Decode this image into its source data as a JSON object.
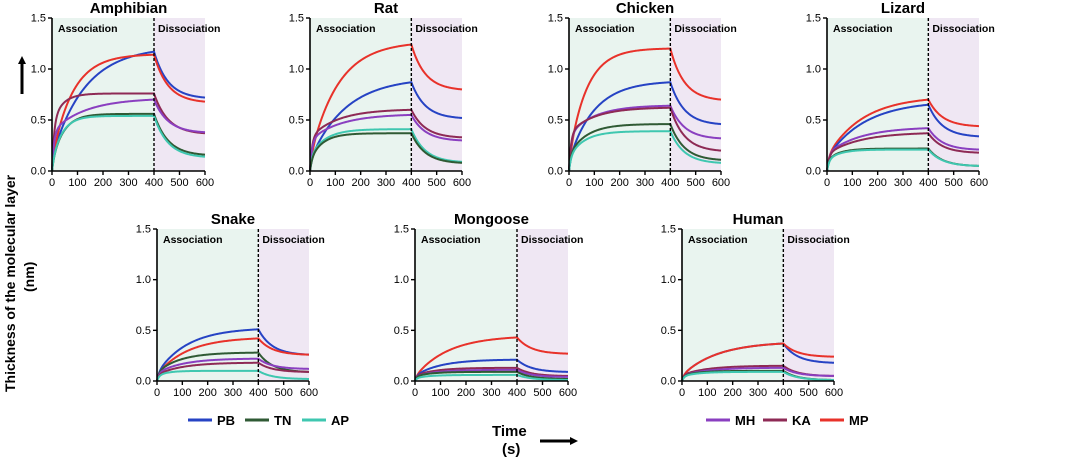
{
  "figure": {
    "y_axis_label": "Thickness of the molecular layer",
    "y_axis_unit": "(nm)",
    "x_axis_label": "Time",
    "x_axis_unit": "(s)"
  },
  "legend": {
    "left": [
      {
        "key": "PB",
        "label": "PB",
        "color": "#2643c4"
      },
      {
        "key": "TN",
        "label": "TN",
        "color": "#2f5a34"
      },
      {
        "key": "AP",
        "label": "AP",
        "color": "#3fc7b0"
      }
    ],
    "right": [
      {
        "key": "MH",
        "label": "MH",
        "color": "#8a3fc0"
      },
      {
        "key": "KA",
        "label": "KA",
        "color": "#8e2a55"
      },
      {
        "key": "MP",
        "label": "MP",
        "color": "#e8322a"
      }
    ]
  },
  "chart_data": [
    {
      "type": "line",
      "title": "Amphibian",
      "phase_labels": [
        "Association",
        "Dissociation"
      ],
      "phase_boundary": 400,
      "xlim": [
        0,
        600
      ],
      "ylim": [
        0,
        1.5
      ],
      "xticks": [
        0,
        100,
        200,
        300,
        400,
        500,
        600
      ],
      "yticks": [
        0.0,
        0.5,
        1.0,
        1.5
      ],
      "series": [
        {
          "name": "PB",
          "peak": 1.17,
          "end": 0.72,
          "tau": 130,
          "fast": 0.12
        },
        {
          "name": "MP",
          "peak": 1.14,
          "end": 0.68,
          "tau": 80,
          "fast": 0.1
        },
        {
          "name": "KA",
          "peak": 0.76,
          "end": 0.37,
          "tau": 40,
          "fast": 0.62
        },
        {
          "name": "MH",
          "peak": 0.7,
          "end": 0.38,
          "tau": 130,
          "fast": 0.55
        },
        {
          "name": "TN",
          "peak": 0.56,
          "end": 0.16,
          "tau": 45,
          "fast": 0.15
        },
        {
          "name": "AP",
          "peak": 0.54,
          "end": 0.14,
          "tau": 40,
          "fast": 0.15
        }
      ]
    },
    {
      "type": "line",
      "title": "Rat",
      "phase_labels": [
        "Association",
        "Dissociation"
      ],
      "phase_boundary": 400,
      "xlim": [
        0,
        600
      ],
      "ylim": [
        0,
        1.5
      ],
      "xticks": [
        0,
        100,
        200,
        300,
        400,
        500,
        600
      ],
      "yticks": [
        0.0,
        0.5,
        1.0,
        1.5
      ],
      "series": [
        {
          "name": "MP",
          "peak": 1.24,
          "end": 0.8,
          "tau": 110,
          "fast": 0.1
        },
        {
          "name": "PB",
          "peak": 0.87,
          "end": 0.52,
          "tau": 140,
          "fast": 0.12
        },
        {
          "name": "KA",
          "peak": 0.6,
          "end": 0.33,
          "tau": 110,
          "fast": 0.55
        },
        {
          "name": "MH",
          "peak": 0.55,
          "end": 0.3,
          "tau": 120,
          "fast": 0.55
        },
        {
          "name": "AP",
          "peak": 0.41,
          "end": 0.09,
          "tau": 60,
          "fast": 0.35
        },
        {
          "name": "TN",
          "peak": 0.37,
          "end": 0.08,
          "tau": 50,
          "fast": 0.3
        }
      ]
    },
    {
      "type": "line",
      "title": "Chicken",
      "phase_labels": [
        "Association",
        "Dissociation"
      ],
      "phase_boundary": 400,
      "xlim": [
        0,
        600
      ],
      "ylim": [
        0,
        1.5
      ],
      "xticks": [
        0,
        100,
        200,
        300,
        400,
        500,
        600
      ],
      "yticks": [
        0.0,
        0.5,
        1.0,
        1.5
      ],
      "series": [
        {
          "name": "MP",
          "peak": 1.2,
          "end": 0.7,
          "tau": 70,
          "fast": 0.1
        },
        {
          "name": "PB",
          "peak": 0.87,
          "end": 0.46,
          "tau": 100,
          "fast": 0.12
        },
        {
          "name": "MH",
          "peak": 0.64,
          "end": 0.32,
          "tau": 100,
          "fast": 0.55
        },
        {
          "name": "KA",
          "peak": 0.62,
          "end": 0.2,
          "tau": 100,
          "fast": 0.6
        },
        {
          "name": "TN",
          "peak": 0.46,
          "end": 0.11,
          "tau": 70,
          "fast": 0.35
        },
        {
          "name": "AP",
          "peak": 0.39,
          "end": 0.08,
          "tau": 60,
          "fast": 0.35
        }
      ]
    },
    {
      "type": "line",
      "title": "Lizard",
      "phase_labels": [
        "Association",
        "Dissociation"
      ],
      "phase_boundary": 400,
      "xlim": [
        0,
        600
      ],
      "ylim": [
        0,
        1.5
      ],
      "xticks": [
        0,
        100,
        200,
        300,
        400,
        500,
        600
      ],
      "yticks": [
        0.0,
        0.5,
        1.0,
        1.5
      ],
      "series": [
        {
          "name": "MP",
          "peak": 0.7,
          "end": 0.44,
          "tau": 140,
          "fast": 0.2
        },
        {
          "name": "PB",
          "peak": 0.65,
          "end": 0.34,
          "tau": 150,
          "fast": 0.2
        },
        {
          "name": "MH",
          "peak": 0.42,
          "end": 0.21,
          "tau": 130,
          "fast": 0.4
        },
        {
          "name": "KA",
          "peak": 0.37,
          "end": 0.18,
          "tau": 130,
          "fast": 0.45
        },
        {
          "name": "TN",
          "peak": 0.22,
          "end": 0.05,
          "tau": 50,
          "fast": 0.5
        },
        {
          "name": "AP",
          "peak": 0.21,
          "end": 0.05,
          "tau": 50,
          "fast": 0.5
        }
      ]
    },
    {
      "type": "line",
      "title": "Snake",
      "phase_labels": [
        "Association",
        "Dissociation"
      ],
      "phase_boundary": 400,
      "xlim": [
        0,
        600
      ],
      "ylim": [
        0,
        1.5
      ],
      "xticks": [
        0,
        100,
        200,
        300,
        400,
        500,
        600
      ],
      "yticks": [
        0.0,
        0.5,
        1.0,
        1.5
      ],
      "series": [
        {
          "name": "PB",
          "peak": 0.51,
          "end": 0.26,
          "tau": 120,
          "fast": 0.15
        },
        {
          "name": "MP",
          "peak": 0.42,
          "end": 0.26,
          "tau": 120,
          "fast": 0.15
        },
        {
          "name": "TN",
          "peak": 0.28,
          "end": 0.09,
          "tau": 90,
          "fast": 0.3
        },
        {
          "name": "MH",
          "peak": 0.22,
          "end": 0.12,
          "tau": 100,
          "fast": 0.35
        },
        {
          "name": "KA",
          "peak": 0.18,
          "end": 0.09,
          "tau": 100,
          "fast": 0.35
        },
        {
          "name": "AP",
          "peak": 0.1,
          "end": 0.02,
          "tau": 40,
          "fast": 0.5
        }
      ]
    },
    {
      "type": "line",
      "title": "Mongoose",
      "phase_labels": [
        "Association",
        "Dissociation"
      ],
      "phase_boundary": 400,
      "xlim": [
        0,
        600
      ],
      "ylim": [
        0,
        1.5
      ],
      "xticks": [
        0,
        100,
        200,
        300,
        400,
        500,
        600
      ],
      "yticks": [
        0.0,
        0.5,
        1.0,
        1.5
      ],
      "series": [
        {
          "name": "MP",
          "peak": 0.43,
          "end": 0.27,
          "tau": 130,
          "fast": 0.1
        },
        {
          "name": "PB",
          "peak": 0.21,
          "end": 0.09,
          "tau": 100,
          "fast": 0.25
        },
        {
          "name": "KA",
          "peak": 0.13,
          "end": 0.05,
          "tau": 80,
          "fast": 0.4
        },
        {
          "name": "MH",
          "peak": 0.11,
          "end": 0.04,
          "tau": 80,
          "fast": 0.4
        },
        {
          "name": "TN",
          "peak": 0.09,
          "end": 0.02,
          "tau": 60,
          "fast": 0.5
        },
        {
          "name": "AP",
          "peak": 0.06,
          "end": 0.01,
          "tau": 60,
          "fast": 0.5
        }
      ]
    },
    {
      "type": "line",
      "title": "Human",
      "phase_labels": [
        "Association",
        "Dissociation"
      ],
      "phase_boundary": 400,
      "xlim": [
        0,
        600
      ],
      "ylim": [
        0,
        1.5
      ],
      "xticks": [
        0,
        100,
        200,
        300,
        400,
        500,
        600
      ],
      "yticks": [
        0.0,
        0.5,
        1.0,
        1.5
      ],
      "series": [
        {
          "name": "PB",
          "peak": 0.37,
          "end": 0.18,
          "tau": 140,
          "fast": 0.15
        },
        {
          "name": "MP",
          "peak": 0.37,
          "end": 0.24,
          "tau": 140,
          "fast": 0.15
        },
        {
          "name": "KA",
          "peak": 0.15,
          "end": 0.05,
          "tau": 100,
          "fast": 0.4
        },
        {
          "name": "MH",
          "peak": 0.13,
          "end": 0.05,
          "tau": 100,
          "fast": 0.4
        },
        {
          "name": "TN",
          "peak": 0.1,
          "end": 0.01,
          "tau": 60,
          "fast": 0.5
        },
        {
          "name": "AP",
          "peak": 0.09,
          "end": 0.01,
          "tau": 60,
          "fast": 0.5
        }
      ]
    }
  ]
}
